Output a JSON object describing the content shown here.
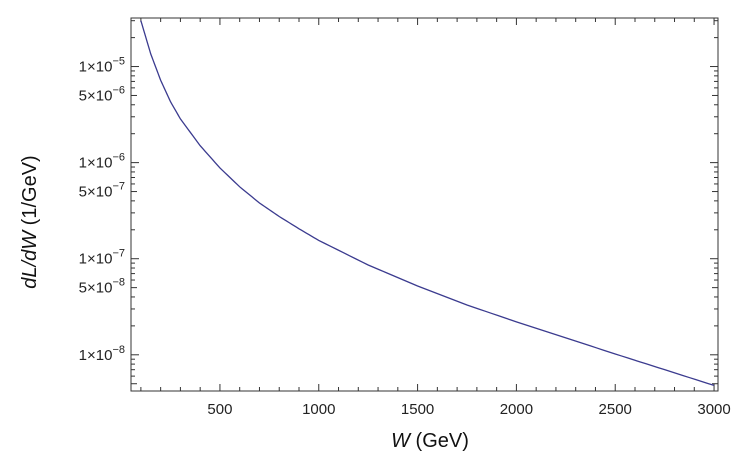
{
  "chart_data": {
    "type": "line",
    "xlabel": {
      "var": "W",
      "unit": " (GeV)"
    },
    "ylabel": {
      "var": "dL/dW",
      "unit": " (1/GeV)"
    },
    "yscale": "log",
    "xlim": [
      50,
      3020
    ],
    "ylim": [
      4.2e-09,
      3.2e-05
    ],
    "grid": false,
    "x_ticks": [
      {
        "value": 500,
        "label": "500"
      },
      {
        "value": 1000,
        "label": "1000"
      },
      {
        "value": 1500,
        "label": "1500"
      },
      {
        "value": 2000,
        "label": "2000"
      },
      {
        "value": 2500,
        "label": "2500"
      },
      {
        "value": 3000,
        "label": "3000"
      }
    ],
    "y_ticks": [
      {
        "value": 1e-05,
        "mantissa": "1",
        "exp": "−5"
      },
      {
        "value": 5e-06,
        "mantissa": "5",
        "exp": "−6"
      },
      {
        "value": 1e-06,
        "mantissa": "1",
        "exp": "−6"
      },
      {
        "value": 5e-07,
        "mantissa": "5",
        "exp": "−7"
      },
      {
        "value": 1e-07,
        "mantissa": "1",
        "exp": "−7"
      },
      {
        "value": 5e-08,
        "mantissa": "5",
        "exp": "−8"
      },
      {
        "value": 1e-08,
        "mantissa": "1",
        "exp": "−8"
      }
    ],
    "series": [
      {
        "color": "#3b3b8f",
        "x": [
          100,
          150,
          200,
          250,
          300,
          400,
          500,
          600,
          700,
          800,
          900,
          1000,
          1250,
          1500,
          1750,
          2000,
          2250,
          2500,
          2750,
          3000
        ],
        "y": [
          3e-05,
          1.35e-05,
          7.2e-06,
          4.3e-06,
          2.85e-06,
          1.5e-06,
          8.8e-07,
          5.6e-07,
          3.8e-07,
          2.75e-07,
          2.05e-07,
          1.55e-07,
          8.6e-08,
          5.2e-08,
          3.3e-08,
          2.2e-08,
          1.5e-08,
          1.02e-08,
          7e-09,
          4.8e-09
        ]
      }
    ]
  }
}
